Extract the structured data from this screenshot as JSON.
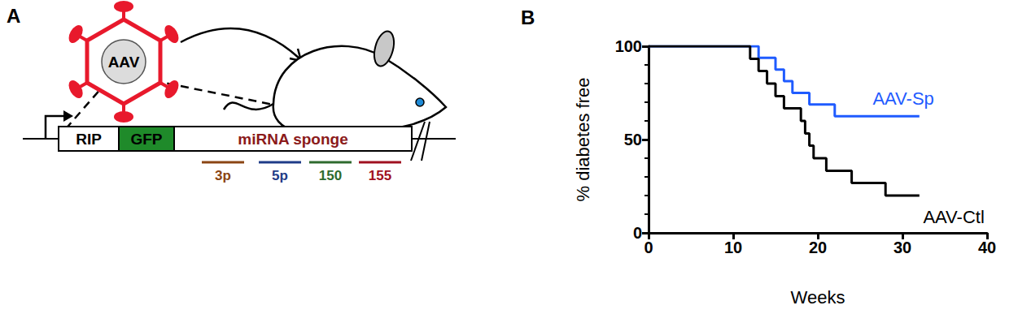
{
  "panel_a": {
    "label": "A",
    "virus": "AAV",
    "construct": [
      "RIP",
      "GFP",
      "miRNA sponge"
    ],
    "sponge_targets": [
      "3p",
      "5p",
      "150",
      "155"
    ]
  },
  "chart_data": {
    "type": "line",
    "title": "B",
    "x_label": "Weeks",
    "y_label": "% diabetes free",
    "xlim": [
      0,
      40
    ],
    "ylim": [
      0,
      100
    ],
    "xticks": [
      0,
      10,
      20,
      30,
      40
    ],
    "yticks": [
      0,
      50,
      100
    ],
    "grid": false,
    "line_style": "step",
    "series": [
      {
        "name": "AAV-Sp",
        "color": "#1f5bff",
        "x": [
          0,
          13,
          15,
          16,
          17,
          19,
          22,
          32
        ],
        "values": [
          100,
          93.8,
          87.5,
          81.3,
          75,
          68.8,
          62.5,
          62.5
        ]
      },
      {
        "name": "AAV-Ctl",
        "color": "#000000",
        "x": [
          0,
          12,
          13,
          14,
          15,
          16,
          18,
          18.5,
          19,
          19.5,
          21,
          24,
          28,
          32
        ],
        "values": [
          100,
          93.3,
          86.7,
          80,
          73.3,
          66.7,
          60,
          53.3,
          46.7,
          40,
          33.3,
          26.7,
          20,
          20
        ]
      }
    ]
  }
}
